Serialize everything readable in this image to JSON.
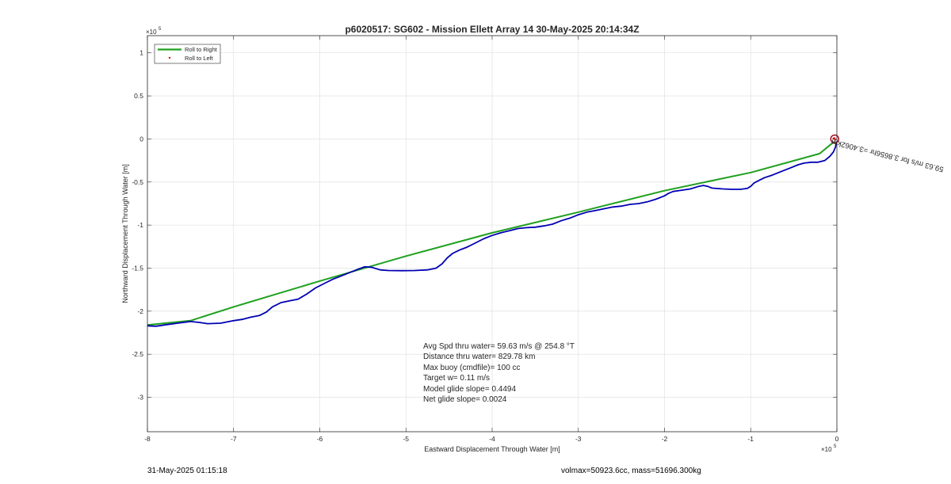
{
  "chart_data": {
    "type": "line",
    "title": "p6020517: SG602 - Mission Ellett Array 14 30-May-2025 20:14:34Z",
    "xlabel": "Eastward Displacement Through Water [m]",
    "ylabel": "Northward Displacement Through Water [m]",
    "x_exponent_label": "×10",
    "x_exponent_power": "5",
    "y_exponent_label": "×10",
    "y_exponent_power": "5",
    "xlim": [
      -800000,
      0
    ],
    "ylim": [
      -340000,
      120000
    ],
    "xticks": [
      {
        "v": -800000,
        "label": "-8"
      },
      {
        "v": -700000,
        "label": "-7"
      },
      {
        "v": -600000,
        "label": "-6"
      },
      {
        "v": -500000,
        "label": "-5"
      },
      {
        "v": -400000,
        "label": "-4"
      },
      {
        "v": -300000,
        "label": "-3"
      },
      {
        "v": -200000,
        "label": "-2"
      },
      {
        "v": -100000,
        "label": "-1"
      },
      {
        "v": 0,
        "label": "0"
      }
    ],
    "yticks": [
      {
        "v": 100000,
        "label": "1"
      },
      {
        "v": 50000,
        "label": "0.5"
      },
      {
        "v": 0,
        "label": "0"
      },
      {
        "v": -50000,
        "label": "-0.5"
      },
      {
        "v": -100000,
        "label": "-1"
      },
      {
        "v": -150000,
        "label": "-1.5"
      },
      {
        "v": -200000,
        "label": "-2"
      },
      {
        "v": -250000,
        "label": "-2.5"
      },
      {
        "v": -300000,
        "label": "-3"
      }
    ],
    "grid": true,
    "legend_position": "top-left",
    "series": [
      {
        "name": "Roll to Right",
        "color": "#1ea01e",
        "marker": "line",
        "x": [
          -800000,
          -750000,
          -700000,
          -600000,
          -500000,
          -400000,
          -300000,
          -200000,
          -100000,
          -20000,
          -3000
        ],
        "y": [
          -216000,
          -211000,
          -195000,
          -165000,
          -136000,
          -109000,
          -85000,
          -60000,
          -39000,
          -17000,
          -3000
        ]
      },
      {
        "name": "Roll to Left",
        "color": "#ff0000",
        "marker": "dot",
        "x": [
          -3000,
          -2000,
          -4000
        ],
        "y": [
          1000,
          -1000,
          500
        ]
      },
      {
        "name": "",
        "color": "#0000b4",
        "marker": "line",
        "x": [
          -800000,
          -790000,
          -780000,
          -765000,
          -750000,
          -740000,
          -730000,
          -715000,
          -700000,
          -690000,
          -680000,
          -670000,
          -662000,
          -655000,
          -645000,
          -635000,
          -625000,
          -615000,
          -605000,
          -595000,
          -585000,
          -575000,
          -565000,
          -555000,
          -548000,
          -540000,
          -530000,
          -520000,
          -505000,
          -490000,
          -475000,
          -465000,
          -458000,
          -452000,
          -446000,
          -438000,
          -430000,
          -420000,
          -410000,
          -400000,
          -390000,
          -380000,
          -370000,
          -360000,
          -350000,
          -340000,
          -330000,
          -320000,
          -310000,
          -300000,
          -290000,
          -280000,
          -270000,
          -260000,
          -250000,
          -240000,
          -230000,
          -220000,
          -210000,
          -200000,
          -195000,
          -190000,
          -180000,
          -170000,
          -160000,
          -155000,
          -150000,
          -145000,
          -140000,
          -132000,
          -122000,
          -112000,
          -104000,
          -100000,
          -96000,
          -90000,
          -84000,
          -75000,
          -65000,
          -55000,
          -45000,
          -38000,
          -30000,
          -22000,
          -14000,
          -8000,
          -4000,
          -1500,
          -500
        ],
        "y": [
          -217000,
          -217500,
          -216000,
          -214000,
          -212000,
          -213000,
          -214500,
          -214000,
          -211000,
          -209500,
          -207000,
          -205000,
          -201000,
          -195000,
          -190000,
          -188000,
          -186000,
          -180000,
          -173000,
          -168000,
          -163000,
          -159000,
          -155000,
          -151000,
          -148500,
          -149000,
          -152000,
          -152800,
          -153000,
          -152800,
          -152000,
          -150000,
          -145000,
          -138000,
          -133000,
          -129000,
          -126000,
          -121000,
          -116000,
          -112000,
          -109000,
          -106500,
          -104000,
          -103000,
          -102500,
          -101000,
          -99000,
          -95000,
          -92000,
          -88000,
          -85000,
          -83000,
          -81000,
          -79000,
          -78000,
          -76000,
          -75000,
          -73000,
          -70000,
          -66000,
          -63000,
          -61000,
          -59500,
          -58000,
          -55000,
          -54000,
          -55000,
          -57000,
          -57500,
          -58000,
          -58500,
          -58500,
          -57500,
          -55000,
          -51000,
          -48000,
          -45000,
          -42000,
          -38000,
          -34000,
          -30000,
          -28000,
          -27000,
          -27000,
          -25000,
          -20000,
          -15000,
          -9000,
          -3000
        ]
      }
    ],
    "annotation_text": [
      "Avg Spd thru water= 59.63 m/s @ 254.8 °T",
      "Distance thru water= 829.78 km",
      "Max buoy (cmdfile)= 100 cc",
      "Target w= 0.11 m/s",
      "Model glide slope= 0.4494",
      "Net glide slope= 0.0024"
    ],
    "rotated_annotation": "59.63 m/s for 3.8656hr =3.4062km"
  },
  "footer": {
    "left": "31-May-2025 01:15:18",
    "right": "volmax=50923.6cc, mass=51696.300kg"
  }
}
